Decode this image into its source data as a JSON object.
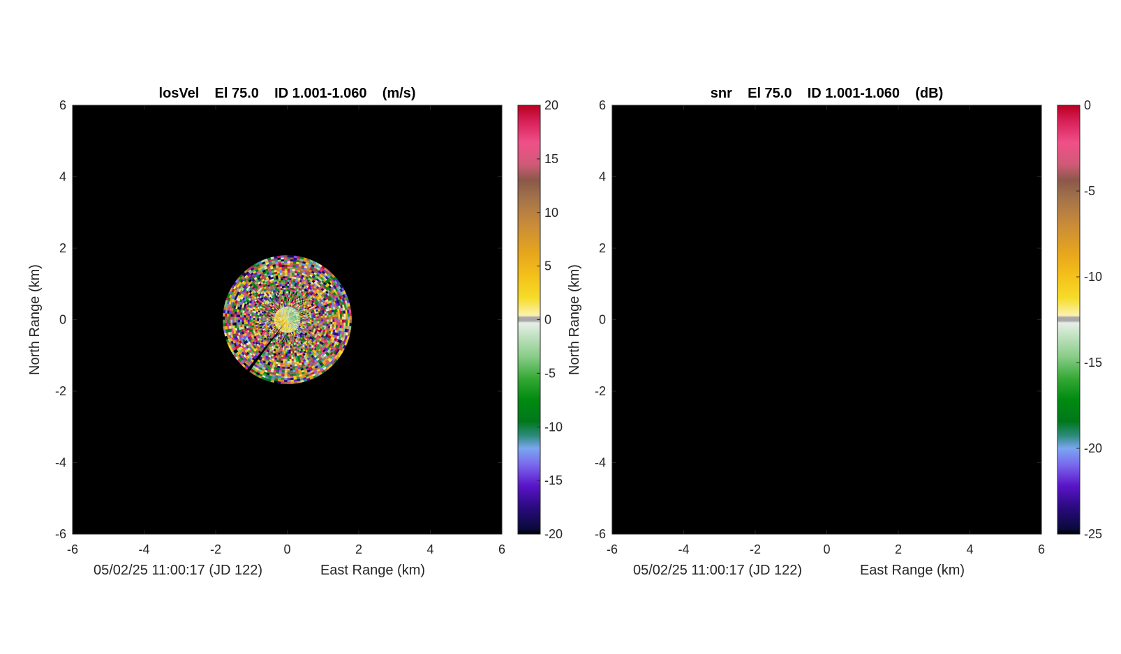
{
  "chart_data": [
    {
      "type": "heatmap",
      "projection": "polar PPI",
      "title": "losVel    El 75.0    ID 1.001-1.060    (m/s)",
      "xlabel": "East Range (km)",
      "ylabel": "North Range (km)",
      "timestamp_label": "05/02/25 11:00:17 (JD 122)",
      "xlim": [
        -6,
        6
      ],
      "ylim": [
        -6,
        6
      ],
      "xticks": [
        "-6",
        "-4",
        "-2",
        "0",
        "2",
        "4",
        "6"
      ],
      "yticks": [
        "-6",
        "-4",
        "-2",
        "0",
        "2",
        "4",
        "6"
      ],
      "background_color": "#000000",
      "data_extent": {
        "max_range_km": 1.8,
        "gap_azimuth_deg": 218,
        "gap_width_deg": 5,
        "value_range": [
          -20,
          20
        ],
        "note": "multicolor noisy velocity field"
      },
      "colorbar": {
        "min": -20,
        "max": 20,
        "ticks": [
          "20",
          "15",
          "10",
          "5",
          "0",
          "-5",
          "-10",
          "-15",
          "-20"
        ],
        "stops": [
          {
            "v": -20,
            "c": "#000000"
          },
          {
            "v": -19.5,
            "c": "#0a0a3c"
          },
          {
            "v": -17.5,
            "c": "#2a0a80"
          },
          {
            "v": -15.5,
            "c": "#5a14c8"
          },
          {
            "v": -13.5,
            "c": "#7a6aee"
          },
          {
            "v": -12,
            "c": "#7aa6f0"
          },
          {
            "v": -10.8,
            "c": "#2c8a7c"
          },
          {
            "v": -9.5,
            "c": "#00781a"
          },
          {
            "v": -7.5,
            "c": "#008a10"
          },
          {
            "v": -5.5,
            "c": "#34a834"
          },
          {
            "v": -3.5,
            "c": "#86cc86"
          },
          {
            "v": -1.5,
            "c": "#c2e2c2"
          },
          {
            "v": -0.3,
            "c": "#e6eee6"
          },
          {
            "v": -0.1,
            "c": "#a8a8a8"
          },
          {
            "v": 0.2,
            "c": "#a8a8a8"
          },
          {
            "v": 0.4,
            "c": "#fbf2b0"
          },
          {
            "v": 2,
            "c": "#f6dc2a"
          },
          {
            "v": 4,
            "c": "#f4c21a"
          },
          {
            "v": 6,
            "c": "#e8a81c"
          },
          {
            "v": 9,
            "c": "#c88a3a"
          },
          {
            "v": 11.5,
            "c": "#a0704a"
          },
          {
            "v": 13,
            "c": "#8a5848"
          },
          {
            "v": 14.5,
            "c": "#d05a78"
          },
          {
            "v": 16.5,
            "c": "#f05088"
          },
          {
            "v": 18.5,
            "c": "#d8205a"
          },
          {
            "v": 20,
            "c": "#b80020"
          }
        ]
      }
    },
    {
      "type": "heatmap",
      "projection": "polar PPI",
      "title": "snr    El 75.0    ID 1.001-1.060    (dB)",
      "xlabel": "East Range (km)",
      "ylabel": "North Range (km)",
      "timestamp_label": "05/02/25 11:00:17 (JD 122)",
      "xlim": [
        -6,
        6
      ],
      "ylim": [
        -6,
        6
      ],
      "xticks": [
        "-6",
        "-4",
        "-2",
        "0",
        "2",
        "4",
        "6"
      ],
      "yticks": [
        "-6",
        "-4",
        "-2",
        "0",
        "2",
        "4",
        "6"
      ],
      "background_color": "#000000",
      "data_extent": null,
      "colorbar": {
        "min": -25,
        "max": 0,
        "ticks": [
          "0",
          "-5",
          "-10",
          "-15",
          "-20",
          "-25"
        ]
      }
    }
  ]
}
